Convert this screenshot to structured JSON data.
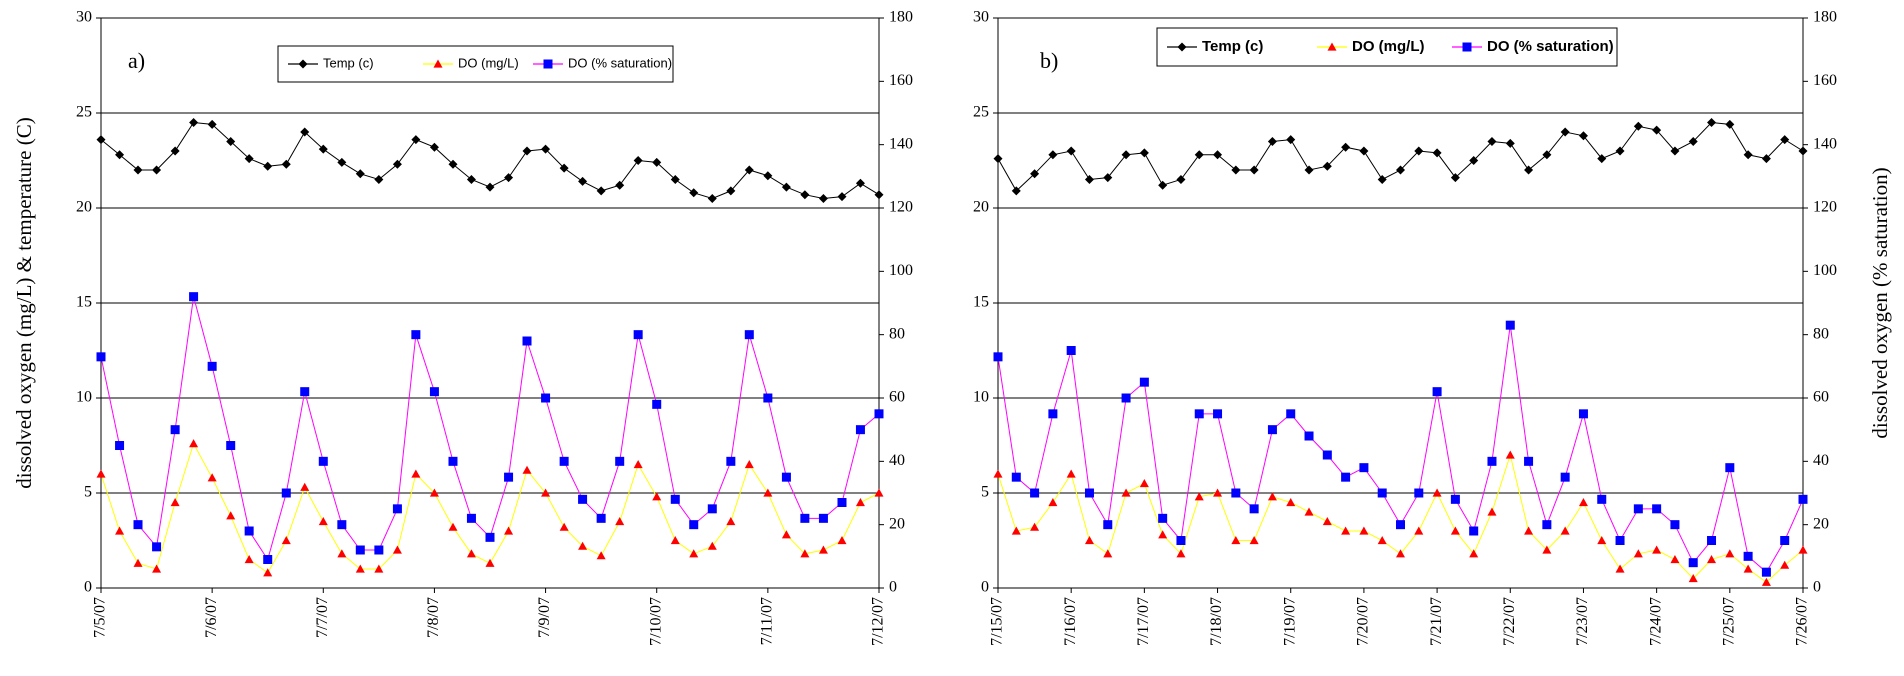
{
  "chart_data": [
    {
      "type": "line",
      "annotation": "a)",
      "y_label": "dissolved oxygen (mg/L) & temperature (C)",
      "x": [
        0,
        0.167,
        0.333,
        0.5,
        0.667,
        0.833,
        1,
        1.167,
        1.333,
        1.5,
        1.667,
        1.833,
        2,
        2.167,
        2.333,
        2.5,
        2.667,
        2.833,
        3,
        3.167,
        3.333,
        3.5,
        3.667,
        3.833,
        4,
        4.167,
        4.333,
        4.5,
        4.667,
        4.833,
        5,
        5.167,
        5.333,
        5.5,
        5.667,
        5.833,
        6,
        6.167,
        6.333,
        6.5,
        6.667,
        6.833,
        7
      ],
      "xlim": [
        0,
        7
      ],
      "xticks": [
        {
          "value": 0,
          "label": "7/5/07"
        },
        {
          "value": 1,
          "label": "7/6/07"
        },
        {
          "value": 2,
          "label": "7/7/07"
        },
        {
          "value": 3,
          "label": "7/8/07"
        },
        {
          "value": 4,
          "label": "7/9/07"
        },
        {
          "value": 5,
          "label": "7/10/07"
        },
        {
          "value": 6,
          "label": "7/11/07"
        },
        {
          "value": 7,
          "label": "7/12/07"
        }
      ],
      "ylim": [
        0,
        30
      ],
      "yticks": [
        0,
        5,
        10,
        15,
        20,
        25,
        30
      ],
      "y2lim": [
        0,
        180
      ],
      "y2ticks": [
        0,
        20,
        40,
        60,
        80,
        100,
        120,
        140,
        160,
        180
      ],
      "grid": true,
      "legend_bold": false,
      "series": [
        {
          "name": "Temp (c)",
          "color": "#000000",
          "line_color": "#000000",
          "marker": "diamond",
          "values": [
            23.6,
            22.8,
            22.0,
            22.0,
            23.0,
            24.5,
            24.4,
            23.5,
            22.6,
            22.2,
            22.3,
            24.0,
            23.1,
            22.4,
            21.8,
            21.5,
            22.3,
            23.6,
            23.2,
            22.3,
            21.5,
            21.1,
            21.6,
            23.0,
            23.1,
            22.1,
            21.4,
            20.9,
            21.2,
            22.5,
            22.4,
            21.5,
            20.8,
            20.5,
            20.9,
            22.0,
            21.7,
            21.1,
            20.7,
            20.5,
            20.6,
            21.3,
            20.7
          ]
        },
        {
          "name": "DO (mg/L)",
          "color": "#ff0000",
          "line_color": "#ffff00",
          "marker": "triangle",
          "values": [
            6.0,
            3.0,
            1.3,
            1.0,
            4.5,
            7.6,
            5.8,
            3.8,
            1.5,
            0.8,
            2.5,
            5.3,
            3.5,
            1.8,
            1.0,
            1.0,
            2.0,
            6.0,
            5.0,
            3.2,
            1.8,
            1.3,
            3.0,
            6.2,
            5.0,
            3.2,
            2.2,
            1.7,
            3.5,
            6.5,
            4.8,
            2.5,
            1.8,
            2.2,
            3.5,
            6.5,
            5.0,
            2.8,
            1.8,
            2.0,
            2.5,
            4.5,
            5.0
          ]
        },
        {
          "name": "DO (% saturation)",
          "color": "#0000ff",
          "line_color": "#ff00ff",
          "marker": "square",
          "axis": "y2",
          "values": [
            73,
            45,
            20,
            13,
            50,
            92,
            70,
            45,
            18,
            9,
            30,
            62,
            40,
            20,
            12,
            12,
            25,
            80,
            62,
            40,
            22,
            16,
            35,
            78,
            60,
            40,
            28,
            22,
            40,
            80,
            58,
            28,
            20,
            25,
            40,
            80,
            60,
            35,
            22,
            22,
            27,
            50,
            55
          ]
        }
      ]
    },
    {
      "type": "line",
      "annotation": "b)",
      "y2_label": "dissolved oxygen (% saturation)",
      "x": [
        0,
        0.25,
        0.5,
        0.75,
        1,
        1.25,
        1.5,
        1.75,
        2,
        2.25,
        2.5,
        2.75,
        3,
        3.25,
        3.5,
        3.75,
        4,
        4.25,
        4.5,
        4.75,
        5,
        5.25,
        5.5,
        5.75,
        6,
        6.25,
        6.5,
        6.75,
        7,
        7.25,
        7.5,
        7.75,
        8,
        8.25,
        8.5,
        8.75,
        9,
        9.25,
        9.5,
        9.75,
        10,
        10.25,
        10.5,
        10.75,
        11
      ],
      "xlim": [
        0,
        11
      ],
      "xticks": [
        {
          "value": 0,
          "label": "7/15/07"
        },
        {
          "value": 1,
          "label": "7/16/07"
        },
        {
          "value": 2,
          "label": "7/17/07"
        },
        {
          "value": 3,
          "label": "7/18/07"
        },
        {
          "value": 4,
          "label": "7/19/07"
        },
        {
          "value": 5,
          "label": "7/20/07"
        },
        {
          "value": 6,
          "label": "7/21/07"
        },
        {
          "value": 7,
          "label": "7/22/07"
        },
        {
          "value": 8,
          "label": "7/23/07"
        },
        {
          "value": 9,
          "label": "7/24/07"
        },
        {
          "value": 10,
          "label": "7/25/07"
        },
        {
          "value": 11,
          "label": "7/26/07"
        }
      ],
      "ylim": [
        0,
        30
      ],
      "yticks": [
        0,
        5,
        10,
        15,
        20,
        25,
        30
      ],
      "y2lim": [
        0,
        180
      ],
      "y2ticks": [
        0,
        20,
        40,
        60,
        80,
        100,
        120,
        140,
        160,
        180
      ],
      "grid": true,
      "legend_bold": true,
      "series": [
        {
          "name": "Temp (c)",
          "color": "#000000",
          "line_color": "#000000",
          "marker": "diamond",
          "values": [
            22.6,
            20.9,
            21.8,
            22.8,
            23.0,
            21.5,
            21.6,
            22.8,
            22.9,
            21.2,
            21.5,
            22.8,
            22.8,
            22.0,
            22.0,
            23.5,
            23.6,
            22.0,
            22.2,
            23.2,
            23.0,
            21.5,
            22.0,
            23.0,
            22.9,
            21.6,
            22.5,
            23.5,
            23.4,
            22.0,
            22.8,
            24.0,
            23.8,
            22.6,
            23.0,
            24.3,
            24.1,
            23.0,
            23.5,
            24.5,
            24.4,
            22.8,
            22.6,
            23.6,
            23.0
          ]
        },
        {
          "name": "DO (mg/L)",
          "color": "#ff0000",
          "line_color": "#ffff00",
          "marker": "triangle",
          "values": [
            6.0,
            3.0,
            3.2,
            4.5,
            6.0,
            2.5,
            1.8,
            5.0,
            5.5,
            2.8,
            1.8,
            4.8,
            5.0,
            2.5,
            2.5,
            4.8,
            4.5,
            4.0,
            3.5,
            3.0,
            3.0,
            2.5,
            1.8,
            3.0,
            5.0,
            3.0,
            1.8,
            4.0,
            7.0,
            3.0,
            2.0,
            3.0,
            4.5,
            2.5,
            1.0,
            1.8,
            2.0,
            1.5,
            0.5,
            1.5,
            1.8,
            1.0,
            0.3,
            1.2,
            2.0
          ]
        },
        {
          "name": "DO (% saturation)",
          "color": "#0000ff",
          "line_color": "#ff00ff",
          "marker": "square",
          "axis": "y2",
          "values": [
            73,
            35,
            30,
            55,
            75,
            30,
            20,
            60,
            65,
            22,
            15,
            55,
            55,
            30,
            25,
            50,
            55,
            48,
            42,
            35,
            38,
            30,
            20,
            30,
            62,
            28,
            18,
            40,
            83,
            40,
            20,
            35,
            55,
            28,
            15,
            25,
            25,
            20,
            8,
            15,
            38,
            10,
            5,
            15,
            28
          ]
        }
      ]
    }
  ]
}
